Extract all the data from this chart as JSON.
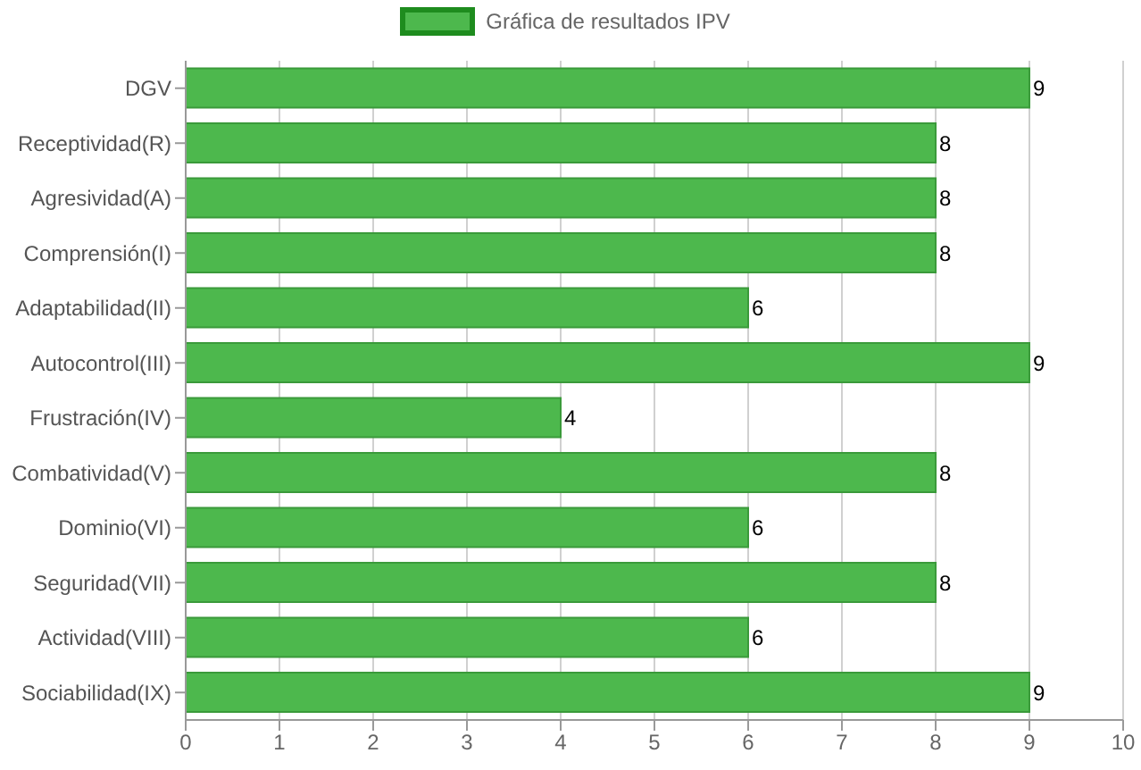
{
  "chart_data": {
    "type": "bar",
    "orientation": "horizontal",
    "categories": [
      "DGV",
      "Receptividad(R)",
      "Agresividad(A)",
      "Comprensión(I)",
      "Adaptabilidad(II)",
      "Autocontrol(III)",
      "Frustración(IV)",
      "Combatividad(V)",
      "Dominio(VI)",
      "Seguridad(VII)",
      "Actividad(VIII)",
      "Sociabilidad(IX)"
    ],
    "series": [
      {
        "name": "Gráfica de resultados IPV",
        "color": "#4db84d",
        "values": [
          9,
          8,
          8,
          8,
          6,
          9,
          4,
          8,
          6,
          8,
          6,
          9
        ]
      }
    ],
    "xlim": [
      0,
      10
    ],
    "xticks": [
      0,
      1,
      2,
      3,
      4,
      5,
      6,
      7,
      8,
      9,
      10
    ],
    "grid": "x",
    "legend": "top",
    "data_labels": true
  }
}
